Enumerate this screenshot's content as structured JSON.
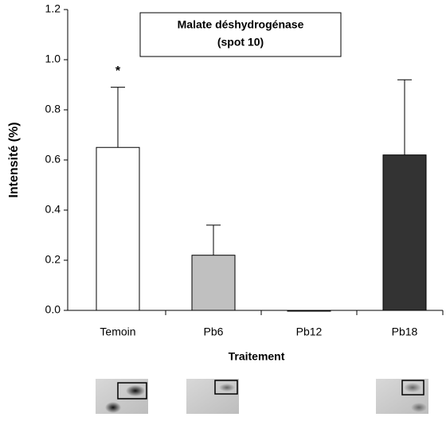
{
  "chart_data": {
    "type": "bar",
    "title": [
      "Malate déshydrogénase",
      "(spot 10)"
    ],
    "categories": [
      "Temoin",
      "Pb6",
      "Pb12",
      "Pb18"
    ],
    "values": [
      0.65,
      0.22,
      0,
      0.62
    ],
    "errors": [
      0.24,
      0.12,
      0,
      0.3
    ],
    "colors": [
      "#ffffff",
      "#c0c0c0",
      "#ffffff",
      "#333333"
    ],
    "annotations": [
      "*",
      null,
      null,
      null
    ],
    "ylabel": "Intensité (%)",
    "xlabel": "Traitement",
    "ylim": [
      0,
      1.2
    ],
    "yticks": [
      {
        "value": 0,
        "label": "0.0"
      },
      0.2,
      0.4,
      0.6,
      0.8,
      {
        "value": 1,
        "label": "1.0"
      },
      1.2
    ]
  }
}
